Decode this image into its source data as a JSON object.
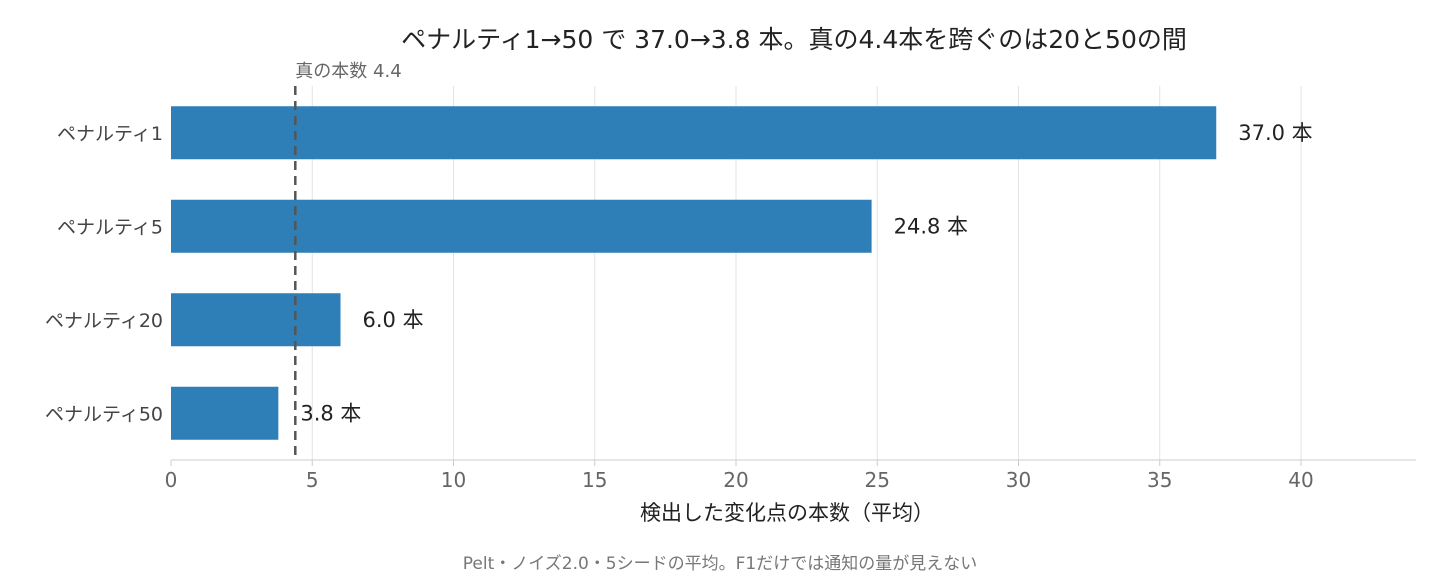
{
  "chart_data": {
    "type": "bar",
    "orientation": "horizontal",
    "title": "ペナルティ1→50 で 37.0→3.8 本。真の4.4本を跨ぐのは20と50の間",
    "categories": [
      "ペナルティ1",
      "ペナルティ5",
      "ペナルティ20",
      "ペナルティ50"
    ],
    "values": [
      37.0,
      24.8,
      6.0,
      3.8
    ],
    "data_labels": [
      "37.0 本",
      "24.8 本",
      "6.0 本",
      "3.8 本"
    ],
    "xlabel": "検出した変化点の本数（平均）",
    "ylabel": "",
    "xlim": [
      0,
      44
    ],
    "xticks": [
      0,
      5,
      10,
      15,
      20,
      25,
      30,
      35,
      40
    ],
    "grid": "vertical",
    "bar_color": "#2e7fb8",
    "reference_line": {
      "value": 4.4,
      "label": "真の本数 4.4",
      "style": "dashed",
      "color": "#555555"
    },
    "caption": "Pelt・ノイズ2.0・5シードの平均。F1だけでは通知の量が見えない"
  }
}
